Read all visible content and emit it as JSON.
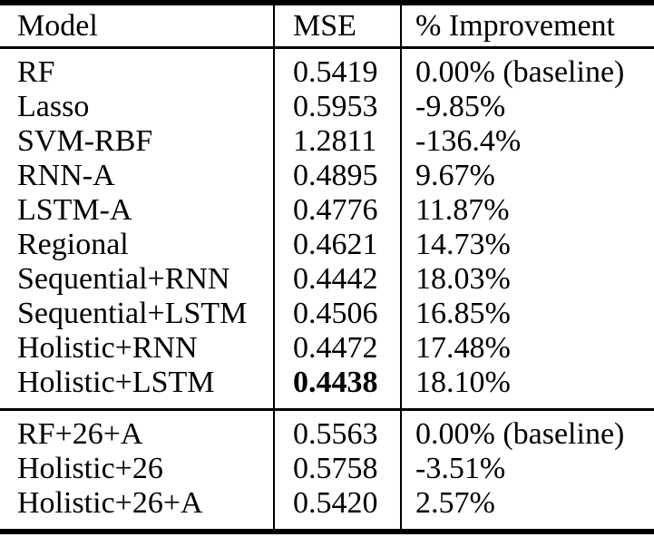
{
  "table": {
    "columns": [
      "Model",
      "MSE",
      "% Improvement"
    ],
    "sections": [
      {
        "rows": [
          {
            "model": "RF",
            "mse": "0.5419",
            "improvement": "0.00% (baseline)",
            "bold_mse": false
          },
          {
            "model": "Lasso",
            "mse": "0.5953",
            "improvement": "-9.85%",
            "bold_mse": false
          },
          {
            "model": "SVM-RBF",
            "mse": "1.2811",
            "improvement": "-136.4%",
            "bold_mse": false
          },
          {
            "model": "RNN-A",
            "mse": "0.4895",
            "improvement": "9.67%",
            "bold_mse": false
          },
          {
            "model": "LSTM-A",
            "mse": "0.4776",
            "improvement": "11.87%",
            "bold_mse": false
          },
          {
            "model": "Regional",
            "mse": "0.4621",
            "improvement": "14.73%",
            "bold_mse": false
          },
          {
            "model": "Sequential+RNN",
            "mse": "0.4442",
            "improvement": "18.03%",
            "bold_mse": false
          },
          {
            "model": "Sequential+LSTM",
            "mse": "0.4506",
            "improvement": "16.85%",
            "bold_mse": false
          },
          {
            "model": "Holistic+RNN",
            "mse": "0.4472",
            "improvement": "17.48%",
            "bold_mse": false
          },
          {
            "model": "Holistic+LSTM",
            "mse": "0.4438",
            "improvement": "18.10%",
            "bold_mse": true
          }
        ]
      },
      {
        "rows": [
          {
            "model": "RF+26+A",
            "mse": "0.5563",
            "improvement": "0.00% (baseline)",
            "bold_mse": false
          },
          {
            "model": "Holistic+26",
            "mse": "0.5758",
            "improvement": "-3.51%",
            "bold_mse": false
          },
          {
            "model": "Holistic+26+A",
            "mse": "0.5420",
            "improvement": "2.57%",
            "bold_mse": false
          }
        ]
      }
    ],
    "colors": {
      "text": "#000000",
      "rule": "#000000",
      "background": "#ffffff"
    }
  }
}
